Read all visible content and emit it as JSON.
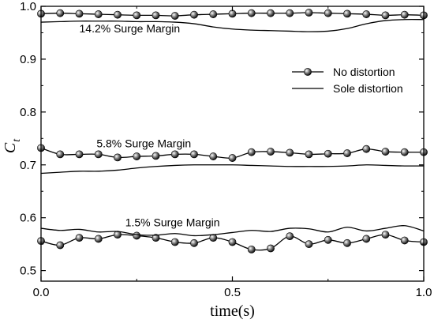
{
  "chart_data": {
    "type": "line",
    "xlabel": "time(s)",
    "ylabel": "C",
    "ylabel_sub": "t",
    "xlim": [
      0.0,
      1.0
    ],
    "ylim": [
      0.48,
      1.0
    ],
    "xticks": [
      0.0,
      0.5,
      1.0
    ],
    "xtick_labels": [
      "0.0",
      "0.5",
      "1.0"
    ],
    "yticks": [
      0.5,
      0.6,
      0.7,
      0.8,
      0.9,
      1.0
    ],
    "ytick_labels": [
      "0.5",
      "0.6",
      "0.7",
      "0.8",
      "0.9",
      "1.0"
    ],
    "grid": false,
    "legend_position": "right",
    "legend": [
      {
        "label": "No distortion",
        "style": "line-with-sphere-markers"
      },
      {
        "label": "Sole distortion",
        "style": "plain-line"
      }
    ],
    "annotations": [
      {
        "text": "14.2% Surge Margin",
        "x": 0.1,
        "y": 0.958
      },
      {
        "text": "5.8% Surge Margin",
        "x": 0.145,
        "y": 0.741
      },
      {
        "text": "1.5% Surge Margin",
        "x": 0.22,
        "y": 0.591
      }
    ],
    "series": [
      {
        "group": "14.2% Surge Margin",
        "legend": "No distortion",
        "markers": true,
        "x": [
          0.0,
          0.05,
          0.1,
          0.15,
          0.2,
          0.25,
          0.3,
          0.35,
          0.4,
          0.45,
          0.5,
          0.55,
          0.6,
          0.65,
          0.7,
          0.75,
          0.8,
          0.85,
          0.9,
          0.95,
          1.0
        ],
        "y": [
          0.986,
          0.987,
          0.986,
          0.985,
          0.984,
          0.983,
          0.983,
          0.982,
          0.984,
          0.985,
          0.986,
          0.987,
          0.987,
          0.987,
          0.988,
          0.987,
          0.986,
          0.985,
          0.983,
          0.984,
          0.983
        ]
      },
      {
        "group": "14.2% Surge Margin",
        "legend": "Sole distortion",
        "markers": false,
        "x": [
          0.0,
          0.05,
          0.1,
          0.15,
          0.2,
          0.25,
          0.3,
          0.35,
          0.4,
          0.45,
          0.5,
          0.55,
          0.6,
          0.65,
          0.7,
          0.75,
          0.8,
          0.85,
          0.9,
          0.95,
          1.0
        ],
        "y": [
          0.97,
          0.971,
          0.972,
          0.972,
          0.972,
          0.971,
          0.971,
          0.97,
          0.967,
          0.961,
          0.957,
          0.955,
          0.954,
          0.953,
          0.952,
          0.953,
          0.958,
          0.967,
          0.973,
          0.975,
          0.975
        ]
      },
      {
        "group": "5.8% Surge Margin",
        "legend": "No distortion",
        "markers": true,
        "x": [
          0.0,
          0.05,
          0.1,
          0.15,
          0.2,
          0.25,
          0.3,
          0.35,
          0.4,
          0.45,
          0.5,
          0.55,
          0.6,
          0.65,
          0.7,
          0.75,
          0.8,
          0.85,
          0.9,
          0.95,
          1.0
        ],
        "y": [
          0.732,
          0.72,
          0.72,
          0.72,
          0.714,
          0.716,
          0.717,
          0.72,
          0.72,
          0.716,
          0.713,
          0.724,
          0.725,
          0.723,
          0.72,
          0.721,
          0.722,
          0.73,
          0.725,
          0.724,
          0.724
        ]
      },
      {
        "group": "5.8% Surge Margin",
        "legend": "Sole distortion",
        "markers": false,
        "x": [
          0.0,
          0.05,
          0.1,
          0.15,
          0.2,
          0.25,
          0.3,
          0.35,
          0.4,
          0.45,
          0.5,
          0.55,
          0.6,
          0.65,
          0.7,
          0.75,
          0.8,
          0.85,
          0.9,
          0.95,
          1.0
        ],
        "y": [
          0.684,
          0.686,
          0.688,
          0.688,
          0.69,
          0.694,
          0.697,
          0.699,
          0.7,
          0.7,
          0.7,
          0.699,
          0.698,
          0.697,
          0.697,
          0.697,
          0.698,
          0.7,
          0.699,
          0.698,
          0.698
        ]
      },
      {
        "group": "1.5% Surge Margin",
        "legend": "No distortion",
        "markers": true,
        "x": [
          0.0,
          0.05,
          0.1,
          0.15,
          0.2,
          0.25,
          0.3,
          0.35,
          0.4,
          0.45,
          0.5,
          0.55,
          0.6,
          0.65,
          0.7,
          0.75,
          0.8,
          0.85,
          0.9,
          0.95,
          1.0
        ],
        "y": [
          0.556,
          0.548,
          0.562,
          0.56,
          0.568,
          0.566,
          0.562,
          0.554,
          0.552,
          0.562,
          0.554,
          0.54,
          0.542,
          0.565,
          0.55,
          0.558,
          0.552,
          0.56,
          0.568,
          0.557,
          0.554
        ]
      },
      {
        "group": "1.5% Surge Margin",
        "legend": "Sole distortion",
        "markers": false,
        "x": [
          0.0,
          0.05,
          0.1,
          0.15,
          0.2,
          0.25,
          0.3,
          0.35,
          0.4,
          0.45,
          0.5,
          0.55,
          0.6,
          0.65,
          0.7,
          0.75,
          0.8,
          0.85,
          0.9,
          0.95,
          1.0
        ],
        "y": [
          0.58,
          0.576,
          0.578,
          0.573,
          0.574,
          0.568,
          0.567,
          0.57,
          0.566,
          0.568,
          0.572,
          0.576,
          0.574,
          0.58,
          0.579,
          0.573,
          0.582,
          0.575,
          0.58,
          0.585,
          0.575
        ]
      }
    ]
  }
}
